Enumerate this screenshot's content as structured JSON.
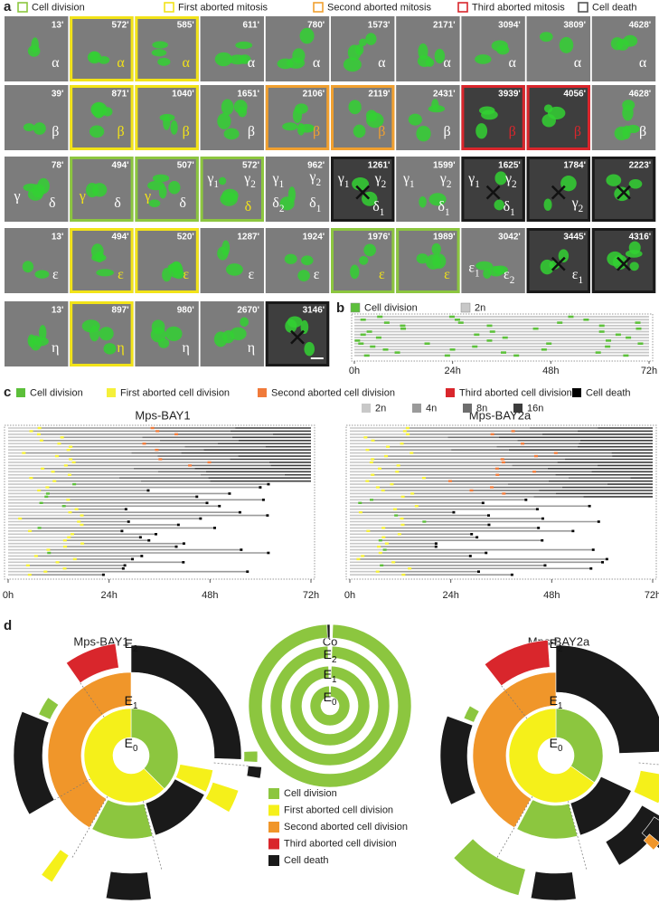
{
  "panel_a": {
    "label": "a",
    "legend": [
      {
        "text": "Cell division",
        "color": "#8cc63f"
      },
      {
        "text": "First aborted mitosis",
        "color": "#f2e318"
      },
      {
        "text": "Second aborted mitosis",
        "color": "#f0a030"
      },
      {
        "text": "Third aborted mitosis",
        "color": "#d9262c"
      },
      {
        "text": "Cell death",
        "color": "#555555"
      }
    ],
    "rows": [
      {
        "tiles": [
          {
            "time": "13'",
            "labels": [
              {
                "text": "α"
              }
            ]
          },
          {
            "time": "572'",
            "border": "#f2e318",
            "labels": [
              {
                "text": "α",
                "color": "#f2e318"
              }
            ]
          },
          {
            "time": "585'",
            "border": "#f2e318",
            "labels": [
              {
                "text": "α",
                "color": "#f2e318"
              }
            ]
          },
          {
            "time": "611'",
            "labels": [
              {
                "text": "α"
              }
            ]
          },
          {
            "time": "780'",
            "labels": [
              {
                "text": "α"
              }
            ]
          },
          {
            "time": "1573'",
            "labels": [
              {
                "text": "α"
              }
            ]
          },
          {
            "time": "2171'",
            "labels": [
              {
                "text": "α"
              }
            ]
          },
          {
            "time": "3094'",
            "labels": [
              {
                "text": "α"
              }
            ]
          },
          {
            "time": "3809'",
            "labels": [
              {
                "text": "α"
              }
            ]
          },
          {
            "time": "4628'",
            "labels": [
              {
                "text": "α"
              }
            ]
          }
        ]
      },
      {
        "tiles": [
          {
            "time": "39'",
            "labels": [
              {
                "text": "β"
              }
            ]
          },
          {
            "time": "871'",
            "border": "#f2e318",
            "labels": [
              {
                "text": "β",
                "color": "#f2e318"
              }
            ]
          },
          {
            "time": "1040'",
            "border": "#f2e318",
            "labels": [
              {
                "text": "β",
                "color": "#f2e318"
              }
            ]
          },
          {
            "time": "1651'",
            "labels": [
              {
                "text": "β"
              }
            ]
          },
          {
            "time": "2106'",
            "border": "#f0a030",
            "labels": [
              {
                "text": "β",
                "color": "#f0a030"
              }
            ]
          },
          {
            "time": "2119'",
            "border": "#f0a030",
            "labels": [
              {
                "text": "β",
                "color": "#f0a030"
              }
            ]
          },
          {
            "time": "2431'",
            "labels": [
              {
                "text": "β"
              }
            ]
          },
          {
            "time": "3939'",
            "border": "#d9262c",
            "labels": [
              {
                "text": "β",
                "color": "#d9262c"
              }
            ]
          },
          {
            "time": "4056'",
            "border": "#d9262c",
            "labels": [
              {
                "text": "β",
                "color": "#d9262c"
              }
            ]
          },
          {
            "time": "4628'",
            "labels": [
              {
                "text": "β"
              }
            ]
          }
        ]
      },
      {
        "tiles": [
          {
            "time": "78'",
            "labels": [
              {
                "text": "γ"
              },
              {
                "text": "δ"
              }
            ]
          },
          {
            "time": "494'",
            "border": "#8cc63f",
            "labels": [
              {
                "text": "γ",
                "color": "#f2e318"
              },
              {
                "text": "δ"
              }
            ]
          },
          {
            "time": "507'",
            "border": "#8cc63f",
            "labels": [
              {
                "text": "γ",
                "color": "#f2e318"
              },
              {
                "text": "δ"
              }
            ]
          },
          {
            "time": "572'",
            "border": "#8cc63f",
            "labels": [
              {
                "text": "γ",
                "sub": "1"
              },
              {
                "text": "γ",
                "sub": "2"
              },
              {
                "text": "δ",
                "color": "#f2e318"
              }
            ]
          },
          {
            "time": "962'",
            "labels": [
              {
                "text": "γ",
                "sub": "1"
              },
              {
                "text": "γ",
                "sub": "2"
              },
              {
                "text": "δ",
                "sub": "2"
              },
              {
                "text": "δ",
                "sub": "1"
              }
            ]
          },
          {
            "time": "1261'",
            "border": "#1a1a1a",
            "death": true,
            "labels": [
              {
                "text": "γ",
                "sub": "1"
              },
              {
                "text": "γ",
                "sub": "2"
              },
              {
                "text": "δ",
                "sub": "1"
              }
            ]
          },
          {
            "time": "1599'",
            "labels": [
              {
                "text": "γ",
                "sub": "1"
              },
              {
                "text": "γ",
                "sub": "2"
              },
              {
                "text": "δ",
                "sub": "1"
              }
            ]
          },
          {
            "time": "1625'",
            "border": "#1a1a1a",
            "death": true,
            "labels": [
              {
                "text": "γ",
                "sub": "1"
              },
              {
                "text": "γ",
                "sub": "2"
              },
              {
                "text": "δ",
                "sub": "1"
              }
            ]
          },
          {
            "time": "1784'",
            "border": "#1a1a1a",
            "death": true,
            "labels": [
              {
                "text": "γ",
                "sub": "2"
              }
            ]
          },
          {
            "time": "2223'",
            "border": "#1a1a1a",
            "death": true,
            "labels": []
          }
        ]
      },
      {
        "tiles": [
          {
            "time": "13'",
            "labels": [
              {
                "text": "ε"
              }
            ]
          },
          {
            "time": "494'",
            "border": "#f2e318",
            "labels": [
              {
                "text": "ε",
                "color": "#f2e318"
              }
            ]
          },
          {
            "time": "520'",
            "border": "#f2e318",
            "labels": [
              {
                "text": "ε",
                "color": "#f2e318"
              }
            ]
          },
          {
            "time": "1287'",
            "labels": [
              {
                "text": "ε"
              }
            ]
          },
          {
            "time": "1924'",
            "labels": [
              {
                "text": "ε"
              }
            ]
          },
          {
            "time": "1976'",
            "border": "#8cc63f",
            "labels": [
              {
                "text": "ε",
                "color": "#f2e318"
              }
            ]
          },
          {
            "time": "1989'",
            "border": "#8cc63f",
            "labels": [
              {
                "text": "ε",
                "color": "#f2e318"
              }
            ]
          },
          {
            "time": "3042'",
            "labels": [
              {
                "text": "ε",
                "sub": "1"
              },
              {
                "text": "ε",
                "sub": "2"
              }
            ]
          },
          {
            "time": "3445'",
            "border": "#1a1a1a",
            "death": true,
            "labels": [
              {
                "text": "ε",
                "sub": "1"
              }
            ]
          },
          {
            "time": "4316'",
            "border": "#1a1a1a",
            "death": true,
            "labels": []
          }
        ]
      },
      {
        "tiles": [
          {
            "time": "13'",
            "labels": [
              {
                "text": "η"
              }
            ]
          },
          {
            "time": "897'",
            "border": "#f2e318",
            "labels": [
              {
                "text": "η",
                "color": "#f2e318"
              }
            ]
          },
          {
            "time": "980'",
            "labels": [
              {
                "text": "η"
              }
            ]
          },
          {
            "time": "2670'",
            "labels": [
              {
                "text": "η"
              }
            ]
          },
          {
            "time": "3146'",
            "border": "#1a1a1a",
            "death": true,
            "labels": []
          }
        ]
      }
    ]
  },
  "panel_b": {
    "label": "b",
    "legend": [
      {
        "text": "Cell division",
        "color": "#5cbf3a"
      },
      {
        "text": "2n",
        "color": "#c8c8c8"
      }
    ],
    "xticks": [
      "0h",
      "24h",
      "48h",
      "72h"
    ]
  },
  "panel_c": {
    "label": "c",
    "legend": [
      {
        "text": "Cell division",
        "color": "#5cbf3a"
      },
      {
        "text": "First aborted cell division",
        "color": "#f5f03a"
      },
      {
        "text": "Second aborted cell division",
        "color": "#f07a3a"
      },
      {
        "text": "Third aborted cell division",
        "color": "#d9262c"
      },
      {
        "text": "Cell death",
        "color": "#000000"
      }
    ],
    "ploidy": [
      {
        "text": "2n",
        "color": "#c8c8c8"
      },
      {
        "text": "4n",
        "color": "#9a9a9a"
      },
      {
        "text": "8n",
        "color": "#6e6e6e"
      },
      {
        "text": "16n",
        "color": "#3c3c3c"
      }
    ],
    "charts": [
      {
        "title": "Mps-BAY1"
      },
      {
        "title": "Mps-BAY2a"
      }
    ],
    "xticks": [
      "0h",
      "24h",
      "48h",
      "72h"
    ]
  },
  "panel_d": {
    "label": "d",
    "charts": [
      {
        "title": "Mps-BAY1"
      },
      {
        "title": "Co"
      },
      {
        "title": "Mps-BAY2a"
      }
    ],
    "ring_labels": [
      {
        "text": "E",
        "sub": "0"
      },
      {
        "text": "E",
        "sub": "1"
      },
      {
        "text": "E",
        "sub": "2"
      }
    ],
    "legend": [
      {
        "text": "Cell division",
        "color": "#8cc63f"
      },
      {
        "text": "First aborted cell division",
        "color": "#f5f01a"
      },
      {
        "text": "Second aborted cell division",
        "color": "#f0962a"
      },
      {
        "text": "Third aborted cell division",
        "color": "#d9262c"
      },
      {
        "text": "Cell death",
        "color": "#1a1a1a"
      }
    ]
  }
}
